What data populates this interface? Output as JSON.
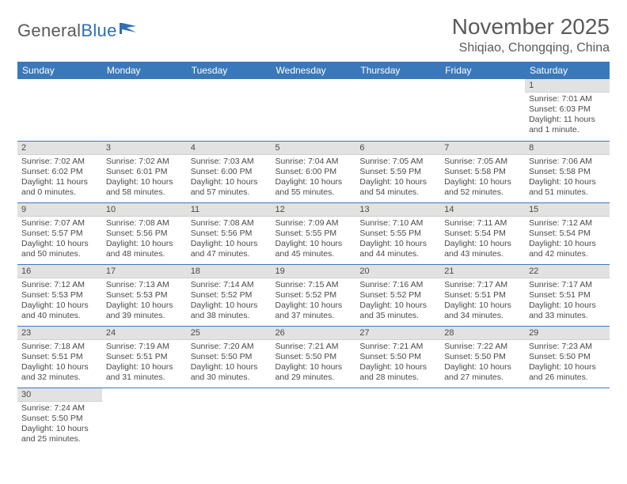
{
  "logo": {
    "text1": "General",
    "text2": "Blue"
  },
  "header": {
    "month_title": "November 2025",
    "location": "Shiqiao, Chongqing, China"
  },
  "colors": {
    "header_bg": "#3b78b9",
    "header_text": "#ffffff",
    "daynum_bg": "#e2e2e2",
    "cell_border": "#3b78b9",
    "body_text": "#4a4a4a",
    "title_text": "#5a5a5a",
    "logo_blue": "#2f6fb3",
    "page_bg": "#ffffff"
  },
  "day_headers": [
    "Sunday",
    "Monday",
    "Tuesday",
    "Wednesday",
    "Thursday",
    "Friday",
    "Saturday"
  ],
  "weeks": [
    [
      {
        "blank": true
      },
      {
        "blank": true
      },
      {
        "blank": true
      },
      {
        "blank": true
      },
      {
        "blank": true
      },
      {
        "blank": true
      },
      {
        "num": "1",
        "sunrise": "Sunrise: 7:01 AM",
        "sunset": "Sunset: 6:03 PM",
        "daylight1": "Daylight: 11 hours",
        "daylight2": "and 1 minute."
      }
    ],
    [
      {
        "num": "2",
        "sunrise": "Sunrise: 7:02 AM",
        "sunset": "Sunset: 6:02 PM",
        "daylight1": "Daylight: 11 hours",
        "daylight2": "and 0 minutes."
      },
      {
        "num": "3",
        "sunrise": "Sunrise: 7:02 AM",
        "sunset": "Sunset: 6:01 PM",
        "daylight1": "Daylight: 10 hours",
        "daylight2": "and 58 minutes."
      },
      {
        "num": "4",
        "sunrise": "Sunrise: 7:03 AM",
        "sunset": "Sunset: 6:00 PM",
        "daylight1": "Daylight: 10 hours",
        "daylight2": "and 57 minutes."
      },
      {
        "num": "5",
        "sunrise": "Sunrise: 7:04 AM",
        "sunset": "Sunset: 6:00 PM",
        "daylight1": "Daylight: 10 hours",
        "daylight2": "and 55 minutes."
      },
      {
        "num": "6",
        "sunrise": "Sunrise: 7:05 AM",
        "sunset": "Sunset: 5:59 PM",
        "daylight1": "Daylight: 10 hours",
        "daylight2": "and 54 minutes."
      },
      {
        "num": "7",
        "sunrise": "Sunrise: 7:05 AM",
        "sunset": "Sunset: 5:58 PM",
        "daylight1": "Daylight: 10 hours",
        "daylight2": "and 52 minutes."
      },
      {
        "num": "8",
        "sunrise": "Sunrise: 7:06 AM",
        "sunset": "Sunset: 5:58 PM",
        "daylight1": "Daylight: 10 hours",
        "daylight2": "and 51 minutes."
      }
    ],
    [
      {
        "num": "9",
        "sunrise": "Sunrise: 7:07 AM",
        "sunset": "Sunset: 5:57 PM",
        "daylight1": "Daylight: 10 hours",
        "daylight2": "and 50 minutes."
      },
      {
        "num": "10",
        "sunrise": "Sunrise: 7:08 AM",
        "sunset": "Sunset: 5:56 PM",
        "daylight1": "Daylight: 10 hours",
        "daylight2": "and 48 minutes."
      },
      {
        "num": "11",
        "sunrise": "Sunrise: 7:08 AM",
        "sunset": "Sunset: 5:56 PM",
        "daylight1": "Daylight: 10 hours",
        "daylight2": "and 47 minutes."
      },
      {
        "num": "12",
        "sunrise": "Sunrise: 7:09 AM",
        "sunset": "Sunset: 5:55 PM",
        "daylight1": "Daylight: 10 hours",
        "daylight2": "and 45 minutes."
      },
      {
        "num": "13",
        "sunrise": "Sunrise: 7:10 AM",
        "sunset": "Sunset: 5:55 PM",
        "daylight1": "Daylight: 10 hours",
        "daylight2": "and 44 minutes."
      },
      {
        "num": "14",
        "sunrise": "Sunrise: 7:11 AM",
        "sunset": "Sunset: 5:54 PM",
        "daylight1": "Daylight: 10 hours",
        "daylight2": "and 43 minutes."
      },
      {
        "num": "15",
        "sunrise": "Sunrise: 7:12 AM",
        "sunset": "Sunset: 5:54 PM",
        "daylight1": "Daylight: 10 hours",
        "daylight2": "and 42 minutes."
      }
    ],
    [
      {
        "num": "16",
        "sunrise": "Sunrise: 7:12 AM",
        "sunset": "Sunset: 5:53 PM",
        "daylight1": "Daylight: 10 hours",
        "daylight2": "and 40 minutes."
      },
      {
        "num": "17",
        "sunrise": "Sunrise: 7:13 AM",
        "sunset": "Sunset: 5:53 PM",
        "daylight1": "Daylight: 10 hours",
        "daylight2": "and 39 minutes."
      },
      {
        "num": "18",
        "sunrise": "Sunrise: 7:14 AM",
        "sunset": "Sunset: 5:52 PM",
        "daylight1": "Daylight: 10 hours",
        "daylight2": "and 38 minutes."
      },
      {
        "num": "19",
        "sunrise": "Sunrise: 7:15 AM",
        "sunset": "Sunset: 5:52 PM",
        "daylight1": "Daylight: 10 hours",
        "daylight2": "and 37 minutes."
      },
      {
        "num": "20",
        "sunrise": "Sunrise: 7:16 AM",
        "sunset": "Sunset: 5:52 PM",
        "daylight1": "Daylight: 10 hours",
        "daylight2": "and 35 minutes."
      },
      {
        "num": "21",
        "sunrise": "Sunrise: 7:17 AM",
        "sunset": "Sunset: 5:51 PM",
        "daylight1": "Daylight: 10 hours",
        "daylight2": "and 34 minutes."
      },
      {
        "num": "22",
        "sunrise": "Sunrise: 7:17 AM",
        "sunset": "Sunset: 5:51 PM",
        "daylight1": "Daylight: 10 hours",
        "daylight2": "and 33 minutes."
      }
    ],
    [
      {
        "num": "23",
        "sunrise": "Sunrise: 7:18 AM",
        "sunset": "Sunset: 5:51 PM",
        "daylight1": "Daylight: 10 hours",
        "daylight2": "and 32 minutes."
      },
      {
        "num": "24",
        "sunrise": "Sunrise: 7:19 AM",
        "sunset": "Sunset: 5:51 PM",
        "daylight1": "Daylight: 10 hours",
        "daylight2": "and 31 minutes."
      },
      {
        "num": "25",
        "sunrise": "Sunrise: 7:20 AM",
        "sunset": "Sunset: 5:50 PM",
        "daylight1": "Daylight: 10 hours",
        "daylight2": "and 30 minutes."
      },
      {
        "num": "26",
        "sunrise": "Sunrise: 7:21 AM",
        "sunset": "Sunset: 5:50 PM",
        "daylight1": "Daylight: 10 hours",
        "daylight2": "and 29 minutes."
      },
      {
        "num": "27",
        "sunrise": "Sunrise: 7:21 AM",
        "sunset": "Sunset: 5:50 PM",
        "daylight1": "Daylight: 10 hours",
        "daylight2": "and 28 minutes."
      },
      {
        "num": "28",
        "sunrise": "Sunrise: 7:22 AM",
        "sunset": "Sunset: 5:50 PM",
        "daylight1": "Daylight: 10 hours",
        "daylight2": "and 27 minutes."
      },
      {
        "num": "29",
        "sunrise": "Sunrise: 7:23 AM",
        "sunset": "Sunset: 5:50 PM",
        "daylight1": "Daylight: 10 hours",
        "daylight2": "and 26 minutes."
      }
    ],
    [
      {
        "num": "30",
        "sunrise": "Sunrise: 7:24 AM",
        "sunset": "Sunset: 5:50 PM",
        "daylight1": "Daylight: 10 hours",
        "daylight2": "and 25 minutes."
      },
      {
        "blank": true
      },
      {
        "blank": true
      },
      {
        "blank": true
      },
      {
        "blank": true
      },
      {
        "blank": true
      },
      {
        "blank": true
      }
    ]
  ]
}
